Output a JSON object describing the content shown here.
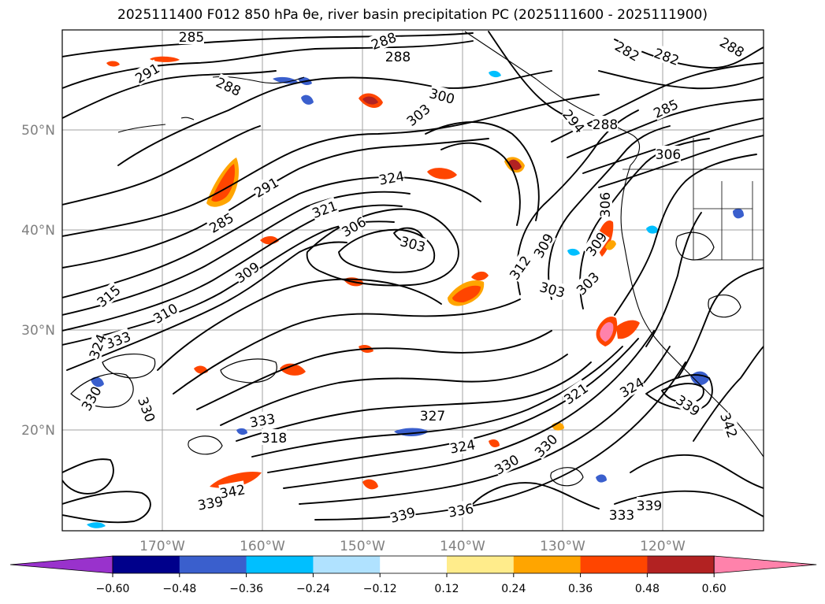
{
  "title": "2025111400 F012 850 hPa θe, river basin precipitation PC (2025111600 - 2025111900)",
  "map": {
    "lat_labels": [
      "50°N",
      "40°N",
      "30°N",
      "20°N"
    ],
    "lon_labels": [
      "170°W",
      "160°W",
      "150°W",
      "140°W",
      "130°W",
      "120°W"
    ],
    "contour_labels": [
      "285",
      "288",
      "288",
      "291",
      "288",
      "300",
      "303",
      "282",
      "282",
      "288",
      "285",
      "294",
      "288",
      "306",
      "324",
      "291",
      "321",
      "306",
      "303",
      "285",
      "309",
      "306",
      "312",
      "309",
      "309",
      "303",
      "303",
      "315",
      "310",
      "333",
      "324",
      "330",
      "330",
      "333",
      "318",
      "327",
      "324",
      "330",
      "330",
      "321",
      "324",
      "339",
      "342",
      "339",
      "342",
      "339",
      "336",
      "333",
      "339"
    ]
  },
  "colorbar": {
    "colors": [
      "#9932cc",
      "#00008b",
      "#3a5fcd",
      "#00bfff",
      "#b0e2ff",
      "#ffffff",
      "#ffec8b",
      "#ffa500",
      "#ff4500",
      "#b22222",
      "#ff82ab"
    ],
    "tick_labels": [
      "−0.60",
      "−0.48",
      "−0.36",
      "−0.24",
      "−0.12",
      "0.12",
      "0.24",
      "0.36",
      "0.48",
      "0.60"
    ]
  }
}
